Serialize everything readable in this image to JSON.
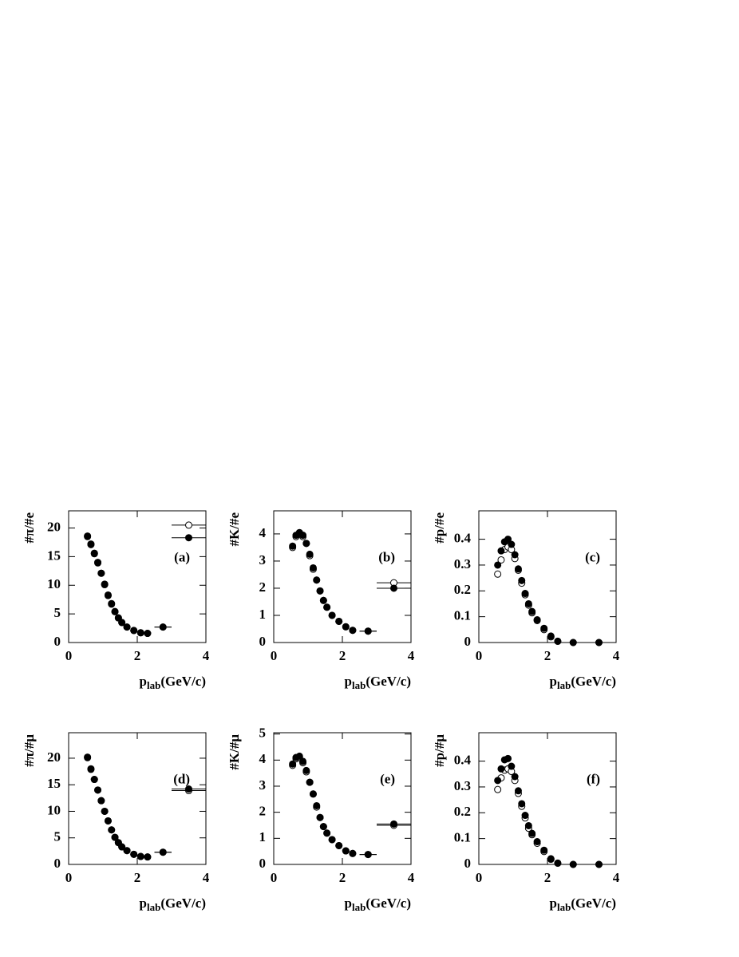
{
  "chart_data": [
    {
      "type": "scatter",
      "ylabel": "#π/#e",
      "xlabel": [
        "p",
        "lab",
        "(GeV/c)"
      ],
      "annotation": "(a)",
      "x": [
        0.55,
        0.65,
        0.75,
        0.85,
        0.95,
        1.05,
        1.15,
        1.25,
        1.35,
        1.45,
        1.55,
        1.7,
        1.9,
        2.1,
        2.3,
        2.75,
        3.5
      ],
      "xerr": [
        null,
        null,
        null,
        null,
        null,
        null,
        null,
        null,
        null,
        null,
        null,
        null,
        null,
        null,
        null,
        0.25,
        0.5
      ],
      "series": [
        {
          "marker": "open",
          "color": "#000000",
          "values": [
            18.5,
            17.1,
            15.5,
            13.9,
            12.1,
            10.1,
            8.2,
            6.7,
            5.4,
            4.3,
            3.5,
            2.7,
            2.1,
            1.7,
            1.6,
            2.7,
            20.5
          ]
        },
        {
          "marker": "filled",
          "color": "#000000",
          "values": [
            18.6,
            17.2,
            15.6,
            14,
            12.1,
            10.2,
            8.3,
            6.8,
            5.4,
            4.3,
            3.5,
            2.7,
            2.1,
            1.7,
            1.6,
            2.7,
            18.3
          ]
        }
      ],
      "xlim": [
        0,
        4
      ],
      "xticks": [
        0,
        2,
        4
      ],
      "ylim": [
        0,
        23
      ],
      "yticks": [
        0,
        5,
        10,
        15,
        20
      ]
    },
    {
      "type": "scatter",
      "ylabel": "#K/#e",
      "xlabel": [
        "p",
        "lab",
        "(GeV/c)"
      ],
      "annotation": "(b)",
      "x": [
        0.55,
        0.65,
        0.75,
        0.85,
        0.95,
        1.05,
        1.15,
        1.25,
        1.35,
        1.45,
        1.55,
        1.7,
        1.9,
        2.1,
        2.3,
        2.75,
        3.5
      ],
      "xerr": [
        null,
        null,
        null,
        null,
        null,
        null,
        null,
        null,
        null,
        null,
        null,
        null,
        null,
        null,
        null,
        0.25,
        0.5
      ],
      "series": [
        {
          "marker": "open",
          "color": "#000000",
          "values": [
            3.5,
            3.9,
            4.0,
            3.9,
            3.65,
            3.2,
            2.7,
            2.3,
            1.9,
            1.55,
            1.3,
            1.0,
            0.78,
            0.58,
            0.45,
            0.42,
            2.2
          ]
        },
        {
          "marker": "filled",
          "color": "#000000",
          "values": [
            3.55,
            3.95,
            4.05,
            3.95,
            3.65,
            3.25,
            2.75,
            2.3,
            1.9,
            1.55,
            1.3,
            1.0,
            0.78,
            0.58,
            0.45,
            0.42,
            2.0
          ]
        }
      ],
      "xlim": [
        0,
        4
      ],
      "xticks": [
        0,
        2,
        4
      ],
      "ylim": [
        0,
        4.85
      ],
      "yticks": [
        0,
        1,
        2,
        3,
        4
      ]
    },
    {
      "type": "scatter",
      "ylabel": "#p/#e",
      "xlabel": [
        "p",
        "lab",
        "(GeV/c)"
      ],
      "annotation": "(c)",
      "x": [
        0.55,
        0.65,
        0.75,
        0.85,
        0.95,
        1.05,
        1.15,
        1.25,
        1.35,
        1.45,
        1.55,
        1.7,
        1.9,
        2.1,
        2.3,
        2.75,
        3.5
      ],
      "xerr": [
        null,
        null,
        null,
        null,
        null,
        null,
        null,
        null,
        null,
        null,
        null,
        null,
        null,
        null,
        null,
        0.25,
        0.5
      ],
      "series": [
        {
          "marker": "open",
          "color": "#000000",
          "values": [
            0.265,
            0.32,
            0.36,
            0.37,
            0.36,
            0.325,
            0.28,
            0.23,
            0.185,
            0.145,
            0.115,
            0.085,
            0.05,
            0.022,
            0.005,
            0,
            0
          ]
        },
        {
          "marker": "filled",
          "color": "#000000",
          "values": [
            0.3,
            0.355,
            0.39,
            0.4,
            0.38,
            0.34,
            0.285,
            0.24,
            0.19,
            0.15,
            0.12,
            0.088,
            0.055,
            0.025,
            0.005,
            0,
            0
          ]
        }
      ],
      "xlim": [
        0,
        4
      ],
      "xticks": [
        0,
        2,
        4
      ],
      "ylim": [
        0,
        0.51
      ],
      "yticks": [
        0,
        0.1,
        0.2,
        0.3,
        0.4
      ]
    },
    {
      "type": "scatter",
      "ylabel": "#π/#μ",
      "xlabel": [
        "p",
        "lab",
        "(GeV/c)"
      ],
      "annotation": "(d)",
      "x": [
        0.55,
        0.65,
        0.75,
        0.85,
        0.95,
        1.05,
        1.15,
        1.25,
        1.35,
        1.45,
        1.55,
        1.7,
        1.9,
        2.1,
        2.3,
        2.75,
        3.5
      ],
      "xerr": [
        null,
        null,
        null,
        null,
        null,
        null,
        null,
        null,
        null,
        null,
        null,
        null,
        null,
        null,
        null,
        0.25,
        0.5
      ],
      "series": [
        {
          "marker": "open",
          "color": "#000000",
          "values": [
            20.1,
            17.9,
            16,
            14,
            12,
            10,
            8.2,
            6.5,
            5.1,
            4.1,
            3.3,
            2.6,
            1.9,
            1.5,
            1.4,
            2.3,
            13.9
          ]
        },
        {
          "marker": "filled",
          "color": "#000000",
          "values": [
            20.2,
            18,
            16,
            14,
            12,
            10,
            8.2,
            6.5,
            5.1,
            4.1,
            3.3,
            2.6,
            1.9,
            1.5,
            1.4,
            2.3,
            14.2
          ]
        }
      ],
      "xlim": [
        0,
        4
      ],
      "xticks": [
        0,
        2,
        4
      ],
      "ylim": [
        0,
        24.8
      ],
      "yticks": [
        0,
        5,
        10,
        15,
        20
      ]
    },
    {
      "type": "scatter",
      "ylabel": "#K/#μ",
      "xlabel": [
        "p",
        "lab",
        "(GeV/c)"
      ],
      "annotation": "(e)",
      "x": [
        0.55,
        0.65,
        0.75,
        0.85,
        0.95,
        1.05,
        1.15,
        1.25,
        1.35,
        1.45,
        1.55,
        1.7,
        1.9,
        2.1,
        2.3,
        2.75,
        3.5
      ],
      "xerr": [
        null,
        null,
        null,
        null,
        null,
        null,
        null,
        null,
        null,
        null,
        null,
        null,
        null,
        null,
        null,
        0.25,
        0.5
      ],
      "series": [
        {
          "marker": "open",
          "color": "#000000",
          "values": [
            3.8,
            4.05,
            4.1,
            3.9,
            3.55,
            3.15,
            2.7,
            2.2,
            1.8,
            1.45,
            1.2,
            0.95,
            0.72,
            0.52,
            0.42,
            0.38,
            1.5
          ]
        },
        {
          "marker": "filled",
          "color": "#000000",
          "values": [
            3.85,
            4.1,
            4.15,
            3.95,
            3.6,
            3.15,
            2.7,
            2.25,
            1.8,
            1.45,
            1.2,
            0.95,
            0.72,
            0.52,
            0.42,
            0.38,
            1.55
          ]
        }
      ],
      "xlim": [
        0,
        4
      ],
      "xticks": [
        0,
        2,
        4
      ],
      "ylim": [
        0,
        5.05
      ],
      "yticks": [
        0,
        1,
        2,
        3,
        4,
        5
      ]
    },
    {
      "type": "scatter",
      "ylabel": "#p/#μ",
      "xlabel": [
        "p",
        "lab",
        "(GeV/c)"
      ],
      "annotation": "(f)",
      "x": [
        0.55,
        0.65,
        0.75,
        0.85,
        0.95,
        1.05,
        1.15,
        1.25,
        1.35,
        1.45,
        1.55,
        1.7,
        1.9,
        2.1,
        2.3,
        2.75,
        3.5
      ],
      "xerr": [
        null,
        null,
        null,
        null,
        null,
        null,
        null,
        null,
        null,
        null,
        null,
        null,
        null,
        null,
        null,
        0.25,
        0.5
      ],
      "series": [
        {
          "marker": "open",
          "color": "#000000",
          "values": [
            0.29,
            0.335,
            0.365,
            0.37,
            0.36,
            0.325,
            0.275,
            0.225,
            0.18,
            0.14,
            0.115,
            0.082,
            0.05,
            0.02,
            0.005,
            0,
            0
          ]
        },
        {
          "marker": "filled",
          "color": "#000000",
          "values": [
            0.325,
            0.37,
            0.405,
            0.41,
            0.38,
            0.34,
            0.285,
            0.235,
            0.19,
            0.15,
            0.12,
            0.088,
            0.055,
            0.022,
            0.005,
            0,
            0
          ]
        }
      ],
      "xlim": [
        0,
        4
      ],
      "xticks": [
        0,
        2,
        4
      ],
      "ylim": [
        0,
        0.51
      ],
      "yticks": [
        0,
        0.1,
        0.2,
        0.3,
        0.4
      ]
    }
  ]
}
